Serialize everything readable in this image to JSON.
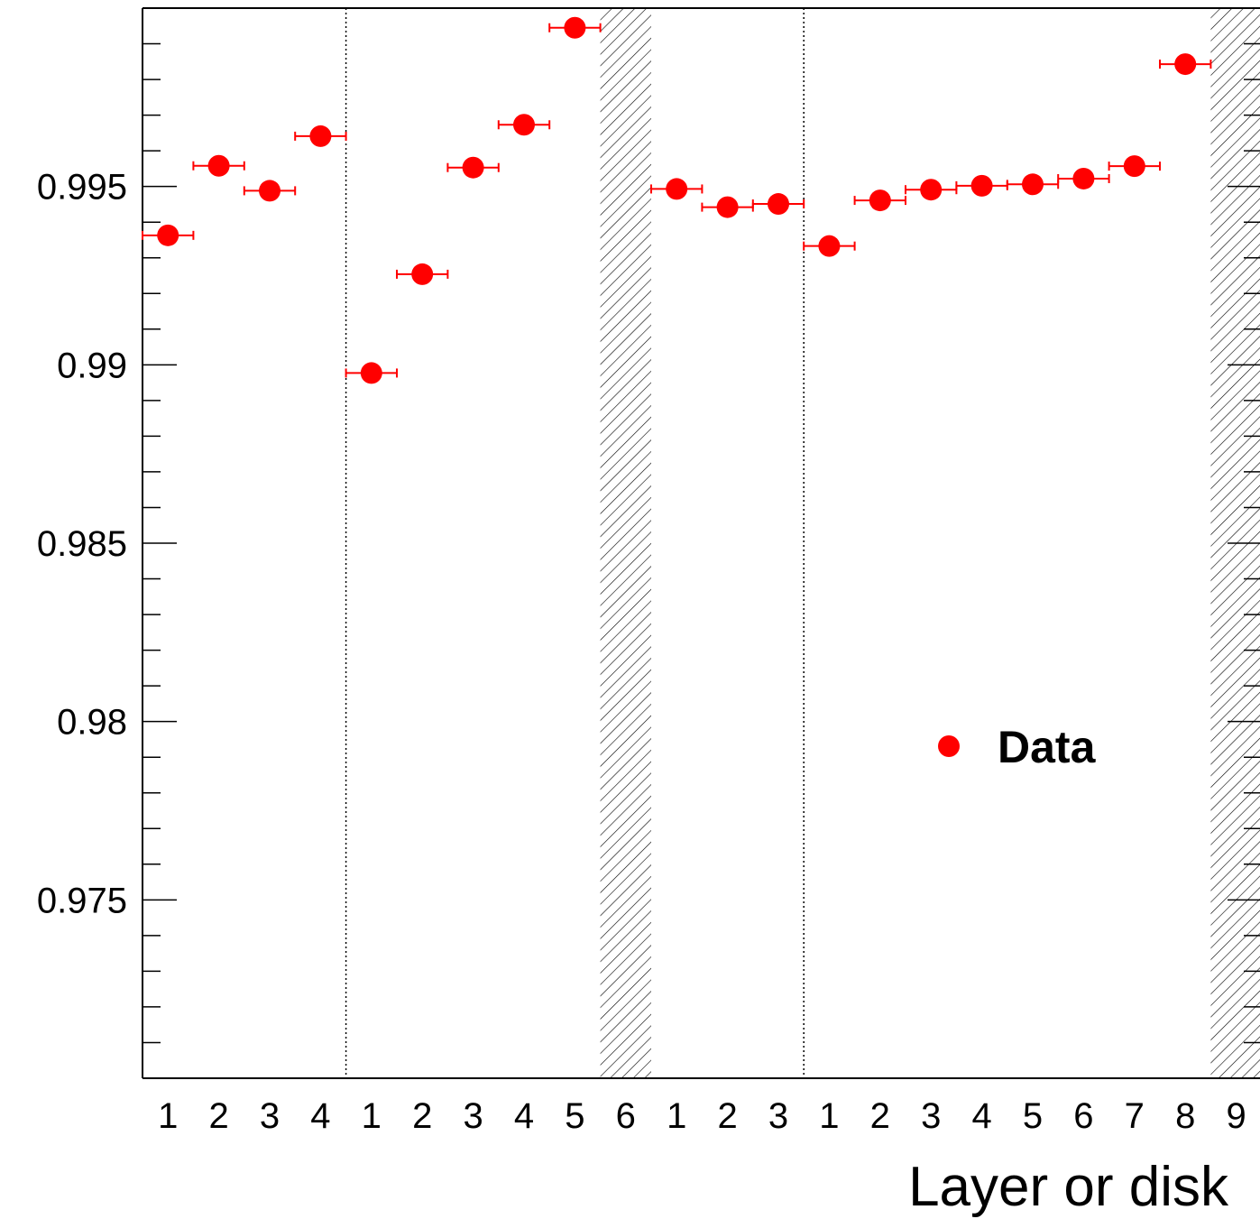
{
  "chart_data": {
    "type": "scatter",
    "xlabel": "Layer or disk",
    "ylabel": "",
    "ylim": [
      0.97,
      1.0
    ],
    "y_ticks": [
      "0.975",
      "0.98",
      "0.985",
      "0.99",
      "0.995"
    ],
    "grid": false,
    "legend": {
      "placement": "right-middle",
      "entries": [
        {
          "label": "Data",
          "color": "#ff0000",
          "marker": "circle"
        }
      ]
    },
    "categories": [
      "1",
      "2",
      "3",
      "4",
      "1",
      "2",
      "3",
      "4",
      "5",
      "6",
      "1",
      "2",
      "3",
      "1",
      "2",
      "3",
      "4",
      "5",
      "6",
      "7",
      "8",
      "9"
    ],
    "groups": [
      {
        "size": 4
      },
      {
        "size": 6
      },
      {
        "size": 3
      },
      {
        "size": 9
      }
    ],
    "excluded_bins": [
      9,
      21
    ],
    "series": [
      {
        "name": "Data",
        "color": "#ff0000",
        "values": [
          0.99363,
          0.99558,
          0.99488,
          0.99641,
          0.98977,
          0.99254,
          0.99553,
          0.99673,
          0.99945,
          null,
          0.99493,
          0.99442,
          0.99451,
          0.99333,
          0.99461,
          0.99491,
          0.99502,
          0.99506,
          0.99522,
          0.99557,
          0.99843,
          null
        ]
      }
    ]
  }
}
